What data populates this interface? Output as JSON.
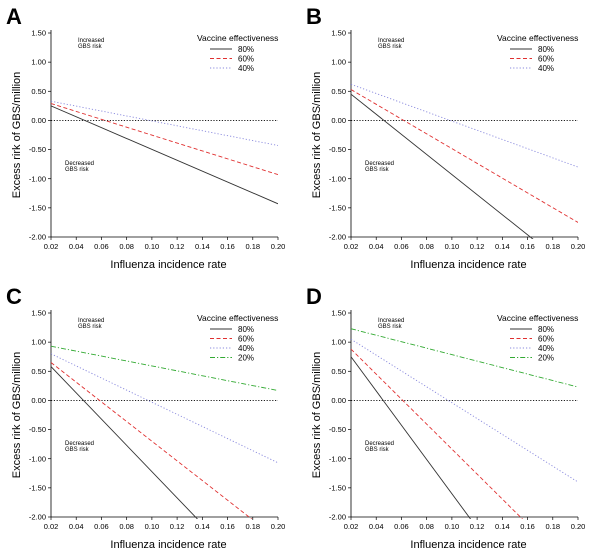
{
  "chart_data": [
    {
      "panel": "A",
      "type": "line",
      "xlabel": "Influenza incidence rate",
      "ylabel": "Excess rirk of GBS/million",
      "xlim": [
        0.02,
        0.2
      ],
      "ylim": [
        -2.0,
        1.5
      ],
      "xticks": [
        "0.02",
        "0.04",
        "0.06",
        "0.08",
        "0.10",
        "0.12",
        "0.14",
        "0.16",
        "0.18",
        "0.20"
      ],
      "yticks": [
        "1.50",
        "1.00",
        "0.50",
        "0.00",
        "-0.50",
        "-1.00",
        "-1.50",
        "-2.00"
      ],
      "legend_title": "Vaccine effectiveness",
      "upper_note": [
        "Increased",
        "GBS risk"
      ],
      "lower_note": [
        "Decreased",
        "GBS risk"
      ],
      "series": [
        {
          "name": "80%",
          "color": "#333333",
          "dash": "solid",
          "x": [
            0.02,
            0.2
          ],
          "y": [
            0.25,
            -1.43
          ]
        },
        {
          "name": "60%",
          "color": "#e03030",
          "dash": "dash",
          "x": [
            0.02,
            0.2
          ],
          "y": [
            0.29,
            -0.93
          ]
        },
        {
          "name": "40%",
          "color": "#8888dd",
          "dash": "dot",
          "x": [
            0.02,
            0.2
          ],
          "y": [
            0.33,
            -0.43
          ]
        }
      ]
    },
    {
      "panel": "B",
      "type": "line",
      "xlabel": "Influenza incidence rate",
      "ylabel": "Excess rirk of GBS/million",
      "xlim": [
        0.02,
        0.2
      ],
      "ylim": [
        -2.0,
        1.5
      ],
      "xticks": [
        "0.02",
        "0.04",
        "0.06",
        "0.08",
        "0.10",
        "0.12",
        "0.14",
        "0.16",
        "0.18",
        "0.20"
      ],
      "yticks": [
        "1.50",
        "1.00",
        "0.50",
        "0.00",
        "-0.50",
        "-1.00",
        "-1.50",
        "-2.00"
      ],
      "legend_title": "Vaccine effectiveness",
      "upper_note": [
        "Increased",
        "GBS risk"
      ],
      "lower_note": [
        "Decreased",
        "GBS risk"
      ],
      "series": [
        {
          "name": "80%",
          "color": "#333333",
          "dash": "solid",
          "x": [
            0.02,
            0.168
          ],
          "y": [
            0.45,
            -2.1
          ]
        },
        {
          "name": "60%",
          "color": "#e03030",
          "dash": "dash",
          "x": [
            0.02,
            0.2
          ],
          "y": [
            0.53,
            -1.75
          ]
        },
        {
          "name": "40%",
          "color": "#8888dd",
          "dash": "dot",
          "x": [
            0.02,
            0.2
          ],
          "y": [
            0.62,
            -0.8
          ]
        }
      ]
    },
    {
      "panel": "C",
      "type": "line",
      "xlabel": "Influenza incidence rate",
      "ylabel": "Excess rirk of GBS/million",
      "xlim": [
        0.02,
        0.2
      ],
      "ylim": [
        -2.0,
        1.5
      ],
      "xticks": [
        "0.02",
        "0.04",
        "0.06",
        "0.08",
        "0.10",
        "0.12",
        "0.14",
        "0.16",
        "0.18",
        "0.20"
      ],
      "yticks": [
        "1.50",
        "1.00",
        "0.50",
        "0.00",
        "-0.50",
        "-1.00",
        "-1.50",
        "-2.00"
      ],
      "legend_title": "Vaccine effectiveness",
      "upper_note": [
        "Increased",
        "GBS risk"
      ],
      "lower_note": [
        "Decreased",
        "GBS risk"
      ],
      "series": [
        {
          "name": "80%",
          "color": "#333333",
          "dash": "solid",
          "x": [
            0.02,
            0.139
          ],
          "y": [
            0.58,
            -2.1
          ]
        },
        {
          "name": "60%",
          "color": "#e03030",
          "dash": "dash",
          "x": [
            0.02,
            0.183
          ],
          "y": [
            0.65,
            -2.1
          ]
        },
        {
          "name": "40%",
          "color": "#8888dd",
          "dash": "dot",
          "x": [
            0.02,
            0.2
          ],
          "y": [
            0.8,
            -1.07
          ]
        },
        {
          "name": "20%",
          "color": "#33aa33",
          "dash": "dashdot",
          "x": [
            0.02,
            0.2
          ],
          "y": [
            0.93,
            0.17
          ]
        }
      ]
    },
    {
      "panel": "D",
      "type": "line",
      "xlabel": "Influenza incidence rate",
      "ylabel": "Excess rirk of GBS/million",
      "xlim": [
        0.02,
        0.2
      ],
      "ylim": [
        -2.0,
        1.5
      ],
      "xticks": [
        "0.02",
        "0.04",
        "0.06",
        "0.08",
        "0.10",
        "0.12",
        "0.14",
        "0.16",
        "0.18",
        "0.20"
      ],
      "yticks": [
        "1.50",
        "1.00",
        "0.50",
        "0.00",
        "-0.50",
        "-1.00",
        "-1.50",
        "-2.00"
      ],
      "legend_title": "Vaccine effectiveness",
      "upper_note": [
        "Increased",
        "GBS risk"
      ],
      "lower_note": [
        "Decreased",
        "GBS risk"
      ],
      "series": [
        {
          "name": "80%",
          "color": "#333333",
          "dash": "solid",
          "x": [
            0.02,
            0.117
          ],
          "y": [
            0.75,
            -2.1
          ]
        },
        {
          "name": "60%",
          "color": "#e03030",
          "dash": "dash",
          "x": [
            0.02,
            0.159
          ],
          "y": [
            0.88,
            -2.1
          ]
        },
        {
          "name": "40%",
          "color": "#8888dd",
          "dash": "dot",
          "x": [
            0.02,
            0.2
          ],
          "y": [
            1.05,
            -1.4
          ]
        },
        {
          "name": "20%",
          "color": "#33aa33",
          "dash": "dashdot",
          "x": [
            0.02,
            0.2
          ],
          "y": [
            1.23,
            0.23
          ]
        }
      ]
    }
  ]
}
